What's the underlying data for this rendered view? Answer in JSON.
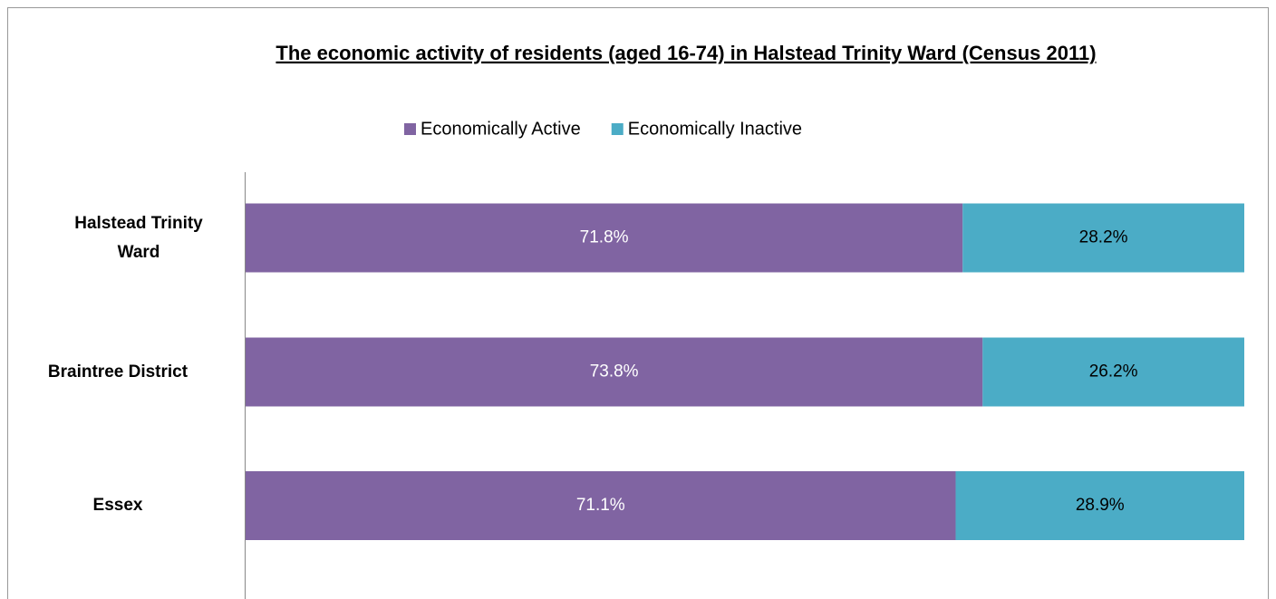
{
  "chart_data": {
    "type": "stacked_barh",
    "title": "The economic activity of residents (aged 16-74) in Halstead Trinity Ward (Census 2011)",
    "categories": [
      "Halstead Trinity Ward",
      "Braintree District",
      "Essex"
    ],
    "series": [
      {
        "name": "Economically Active",
        "color": "#8064a2",
        "values": [
          71.8,
          73.8,
          71.1
        ],
        "value_labels": [
          "71.8%",
          "73.8%",
          "71.1%"
        ]
      },
      {
        "name": "Economically Inactive",
        "color": "#4bacc6",
        "values": [
          28.2,
          26.2,
          28.9
        ],
        "value_labels": [
          "28.2%",
          "26.2%",
          "28.9%"
        ]
      }
    ],
    "xlim": [
      0,
      100
    ],
    "legend": "top"
  }
}
